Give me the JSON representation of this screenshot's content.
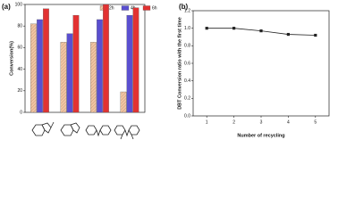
{
  "chart_data": [
    {
      "type": "bar",
      "panel": "(a)",
      "y_label": "Conversion(%)",
      "categories": [
        null,
        null,
        null,
        null
      ],
      "series": [
        {
          "name": "2h",
          "color": "#f2c6a4",
          "values": [
            82,
            65,
            65,
            19
          ]
        },
        {
          "name": "4h",
          "color": "#5a4fd0",
          "values": [
            86,
            73,
            86,
            90
          ]
        },
        {
          "name": "6h",
          "color": "#e23232",
          "values": [
            96,
            90,
            100,
            97
          ]
        }
      ],
      "ylim": [
        0,
        100
      ],
      "yticks": [
        0,
        20,
        40,
        60,
        80,
        100
      ],
      "legend": "top-right"
    },
    {
      "type": "line",
      "panel": "(b)",
      "y_label": "DBT Conversion ratio with the first time",
      "x_label": "Number of recycling",
      "x": [
        1,
        2,
        3,
        4,
        5
      ],
      "series": [
        {
          "name": null,
          "color": "#222222",
          "values": [
            1.0,
            1.0,
            0.97,
            0.93,
            0.92
          ]
        }
      ],
      "xlim": [
        0.5,
        5.5
      ],
      "xticks": [
        1,
        2,
        3,
        4,
        5
      ],
      "ylim": [
        0,
        1.2
      ],
      "yticks": [
        {
          "value": 0,
          "label": "0.0"
        },
        {
          "value": 0.2,
          "label": "0.2"
        },
        {
          "value": 0.4,
          "label": "0.4"
        },
        {
          "value": 0.6,
          "label": "0.6"
        },
        {
          "value": 0.8,
          "label": "0.8"
        },
        {
          "value": 1.0,
          "label": "1.0"
        },
        {
          "value": 1.2,
          "label": "1.2"
        }
      ]
    }
  ]
}
